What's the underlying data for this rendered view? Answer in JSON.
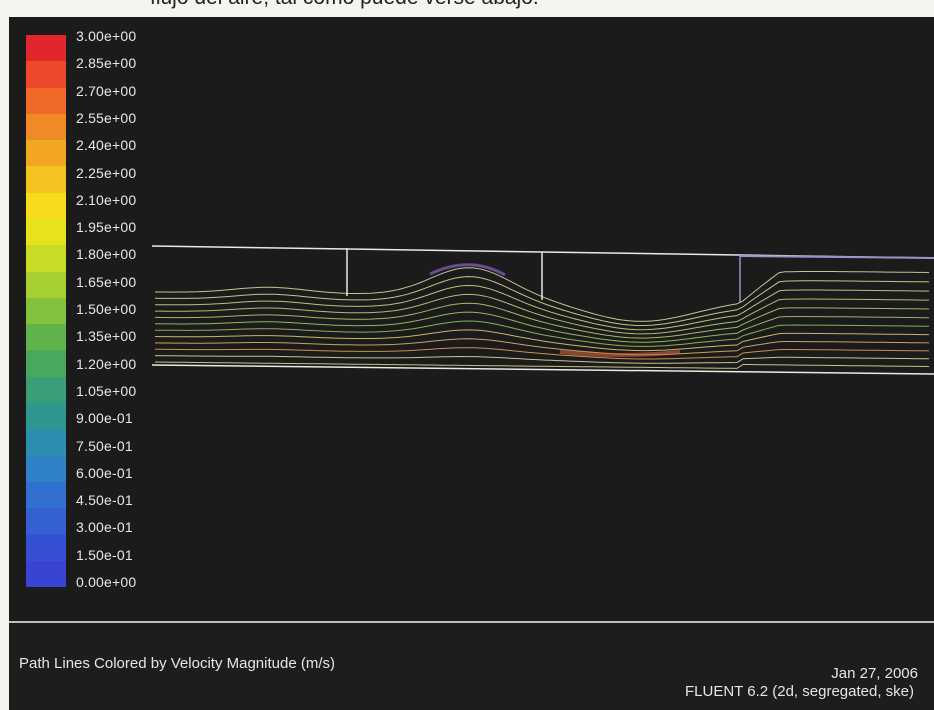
{
  "page_caption_fragment": "flujo del aire, tal como puede verse abajo.",
  "colorbar": {
    "labels": [
      "3.00e+00",
      "2.85e+00",
      "2.70e+00",
      "2.55e+00",
      "2.40e+00",
      "2.25e+00",
      "2.10e+00",
      "1.95e+00",
      "1.80e+00",
      "1.65e+00",
      "1.50e+00",
      "1.35e+00",
      "1.20e+00",
      "1.05e+00",
      "9.00e-01",
      "7.50e-01",
      "6.00e-01",
      "4.50e-01",
      "3.00e-01",
      "1.50e-01",
      "0.00e+00"
    ],
    "colors": [
      "#e3262c",
      "#ec4a2a",
      "#ef6a27",
      "#f08a25",
      "#f2a722",
      "#f4c31f",
      "#f6dc1d",
      "#e7e21c",
      "#c9dc25",
      "#a6cf32",
      "#82c23c",
      "#5fb34a",
      "#48a85c",
      "#3a9f76",
      "#2f9690",
      "#2c8fb0",
      "#2f82c8",
      "#3170d0",
      "#3460d2",
      "#3650d4",
      "#3a44d2"
    ]
  },
  "plot": {
    "title": "Path Lines Colored by Velocity Magnitude (m/s)",
    "date": "Jan 27, 2006",
    "software": "FLUENT 6.2 (2d, segregated, ske)"
  },
  "pathline_colors": [
    "#e3e0a8",
    "#dfe29a",
    "#d2e08c",
    "#c2dc7c",
    "#b6d770",
    "#a9d066",
    "#9bc95e",
    "#e6d17a",
    "#e8b96c",
    "#eca25a"
  ]
}
